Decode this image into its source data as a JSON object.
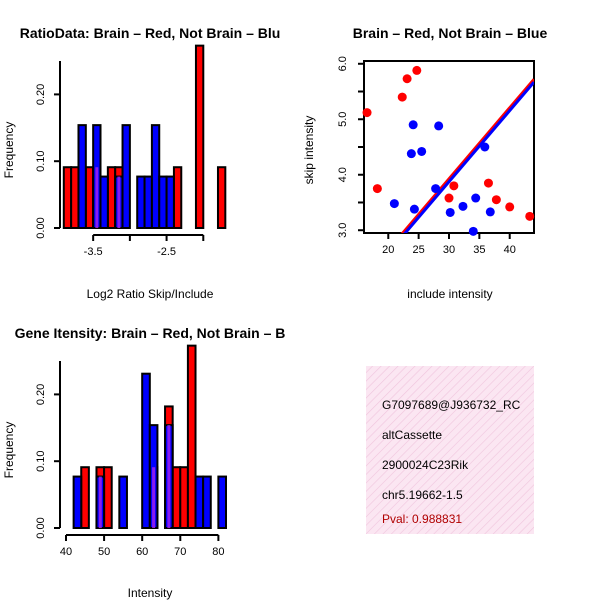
{
  "colors": {
    "red": "#ff0000",
    "blue": "#0000ff",
    "overlap": "#a020f0",
    "info_bg": "#f7d9ec",
    "pval": "#b00000",
    "line_red": "#ff0000",
    "line_blue": "#0000ff"
  },
  "chart_data": [
    {
      "id": "ratio",
      "type": "bar",
      "title": "RatioData: Brain – Red, Not Brain – Blu",
      "xlabel": "Log2 Ratio Skip/Include",
      "ylabel": "Frequency",
      "xlim": [
        -3.87,
        -1.5
      ],
      "ylim": [
        0,
        0.25
      ],
      "xticks": [
        -3.5,
        -3.0,
        -2.5,
        -2.0
      ],
      "xticklabels": [
        "-3.5",
        "",
        "-2.5",
        ""
      ],
      "yticks": [
        0,
        0.1,
        0.2
      ],
      "yticklabels": [
        "0.00",
        "0.10",
        "0.20"
      ],
      "bin_width": 0.1,
      "red": [
        {
          "x": -3.85,
          "value": 0.091
        },
        {
          "x": -3.75,
          "value": 0.091
        },
        {
          "x": -3.55,
          "value": 0.091
        },
        {
          "x": -3.45,
          "value": 0.091
        },
        {
          "x": -3.25,
          "value": 0.091
        },
        {
          "x": -3.15,
          "value": 0.091
        },
        {
          "x": -2.35,
          "value": 0.091
        },
        {
          "x": -2.05,
          "value": 0.273
        },
        {
          "x": -1.75,
          "value": 0.091
        }
      ],
      "blue": [
        {
          "x": -3.65,
          "value": 0.154
        },
        {
          "x": -3.45,
          "value": 0.154
        },
        {
          "x": -3.35,
          "value": 0.077
        },
        {
          "x": -3.15,
          "value": 0.077
        },
        {
          "x": -3.05,
          "value": 0.154
        },
        {
          "x": -2.85,
          "value": 0.077
        },
        {
          "x": -2.75,
          "value": 0.077
        },
        {
          "x": -2.65,
          "value": 0.154
        },
        {
          "x": -2.55,
          "value": 0.077
        },
        {
          "x": -2.45,
          "value": 0.077
        }
      ]
    },
    {
      "id": "scatter",
      "type": "scatter",
      "title": "Brain – Red, Not Brain – Blue",
      "xlabel": "include intensity",
      "ylabel": "skip intensity",
      "xlim": [
        16,
        44
      ],
      "ylim": [
        2.95,
        6.05
      ],
      "xticks": [
        20,
        25,
        30,
        35,
        40
      ],
      "xticklabels": [
        "20",
        "25",
        "30",
        "35",
        "40"
      ],
      "yticks": [
        3,
        3.5,
        4,
        4.5,
        5,
        5.5,
        6
      ],
      "yticklabels": [
        "3.0",
        "",
        "4.0",
        "",
        "5.0",
        "",
        "6.0"
      ],
      "red": [
        {
          "x": 16.5,
          "y": 5.12
        },
        {
          "x": 18.2,
          "y": 3.75
        },
        {
          "x": 22.3,
          "y": 5.4
        },
        {
          "x": 23.1,
          "y": 5.73
        },
        {
          "x": 24.7,
          "y": 5.88
        },
        {
          "x": 30.0,
          "y": 3.58
        },
        {
          "x": 30.8,
          "y": 3.8
        },
        {
          "x": 36.5,
          "y": 3.85
        },
        {
          "x": 37.8,
          "y": 3.55
        },
        {
          "x": 40.0,
          "y": 3.42
        },
        {
          "x": 43.3,
          "y": 3.25
        }
      ],
      "blue": [
        {
          "x": 21.0,
          "y": 3.48
        },
        {
          "x": 23.8,
          "y": 4.38
        },
        {
          "x": 24.1,
          "y": 4.9
        },
        {
          "x": 24.3,
          "y": 3.38
        },
        {
          "x": 25.5,
          "y": 4.42
        },
        {
          "x": 27.8,
          "y": 3.75
        },
        {
          "x": 28.3,
          "y": 4.88
        },
        {
          "x": 30.2,
          "y": 3.32
        },
        {
          "x": 32.3,
          "y": 3.43
        },
        {
          "x": 34.4,
          "y": 3.58
        },
        {
          "x": 34.0,
          "y": 2.98
        },
        {
          "x": 35.9,
          "y": 4.5
        },
        {
          "x": 36.8,
          "y": 3.33
        }
      ],
      "lines": [
        {
          "name": "red-fit",
          "x0": 22.0,
          "y0": 2.9,
          "x1": 44.0,
          "y1": 5.72
        },
        {
          "name": "blue-fit",
          "x0": 22.4,
          "y0": 2.9,
          "x1": 44.0,
          "y1": 5.67
        }
      ]
    },
    {
      "id": "intensity",
      "type": "bar",
      "title": "Gene Itensity: Brain – Red, Not Brain – B",
      "xlabel": "Intensity",
      "ylabel": "Frequency",
      "xlim": [
        40,
        82
      ],
      "ylim": [
        0,
        0.25
      ],
      "xticks": [
        40,
        50,
        60,
        70,
        80
      ],
      "xticklabels": [
        "40",
        "50",
        "60",
        "70",
        "80"
      ],
      "yticks": [
        0,
        0.1,
        0.2
      ],
      "yticklabels": [
        "0.00",
        "0.10",
        "0.20"
      ],
      "bin_width": 2,
      "red": [
        {
          "x": 45,
          "value": 0.091
        },
        {
          "x": 49,
          "value": 0.091
        },
        {
          "x": 51,
          "value": 0.091
        },
        {
          "x": 63,
          "value": 0.091
        },
        {
          "x": 67,
          "value": 0.182
        },
        {
          "x": 69,
          "value": 0.091
        },
        {
          "x": 71,
          "value": 0.091
        },
        {
          "x": 73,
          "value": 0.273
        }
      ],
      "blue": [
        {
          "x": 43,
          "value": 0.077
        },
        {
          "x": 49,
          "value": 0.077
        },
        {
          "x": 55,
          "value": 0.077
        },
        {
          "x": 61,
          "value": 0.231
        },
        {
          "x": 63,
          "value": 0.154
        },
        {
          "x": 67,
          "value": 0.154
        },
        {
          "x": 75,
          "value": 0.077
        },
        {
          "x": 77,
          "value": 0.077
        },
        {
          "x": 81,
          "value": 0.077
        }
      ]
    }
  ],
  "info": {
    "probe": "G7097689@J936732_RC",
    "event": "altCassette",
    "gene": "2900024C23Rik",
    "location": "chr5.19662-1.5",
    "pval": "Pval: 0.988831"
  }
}
